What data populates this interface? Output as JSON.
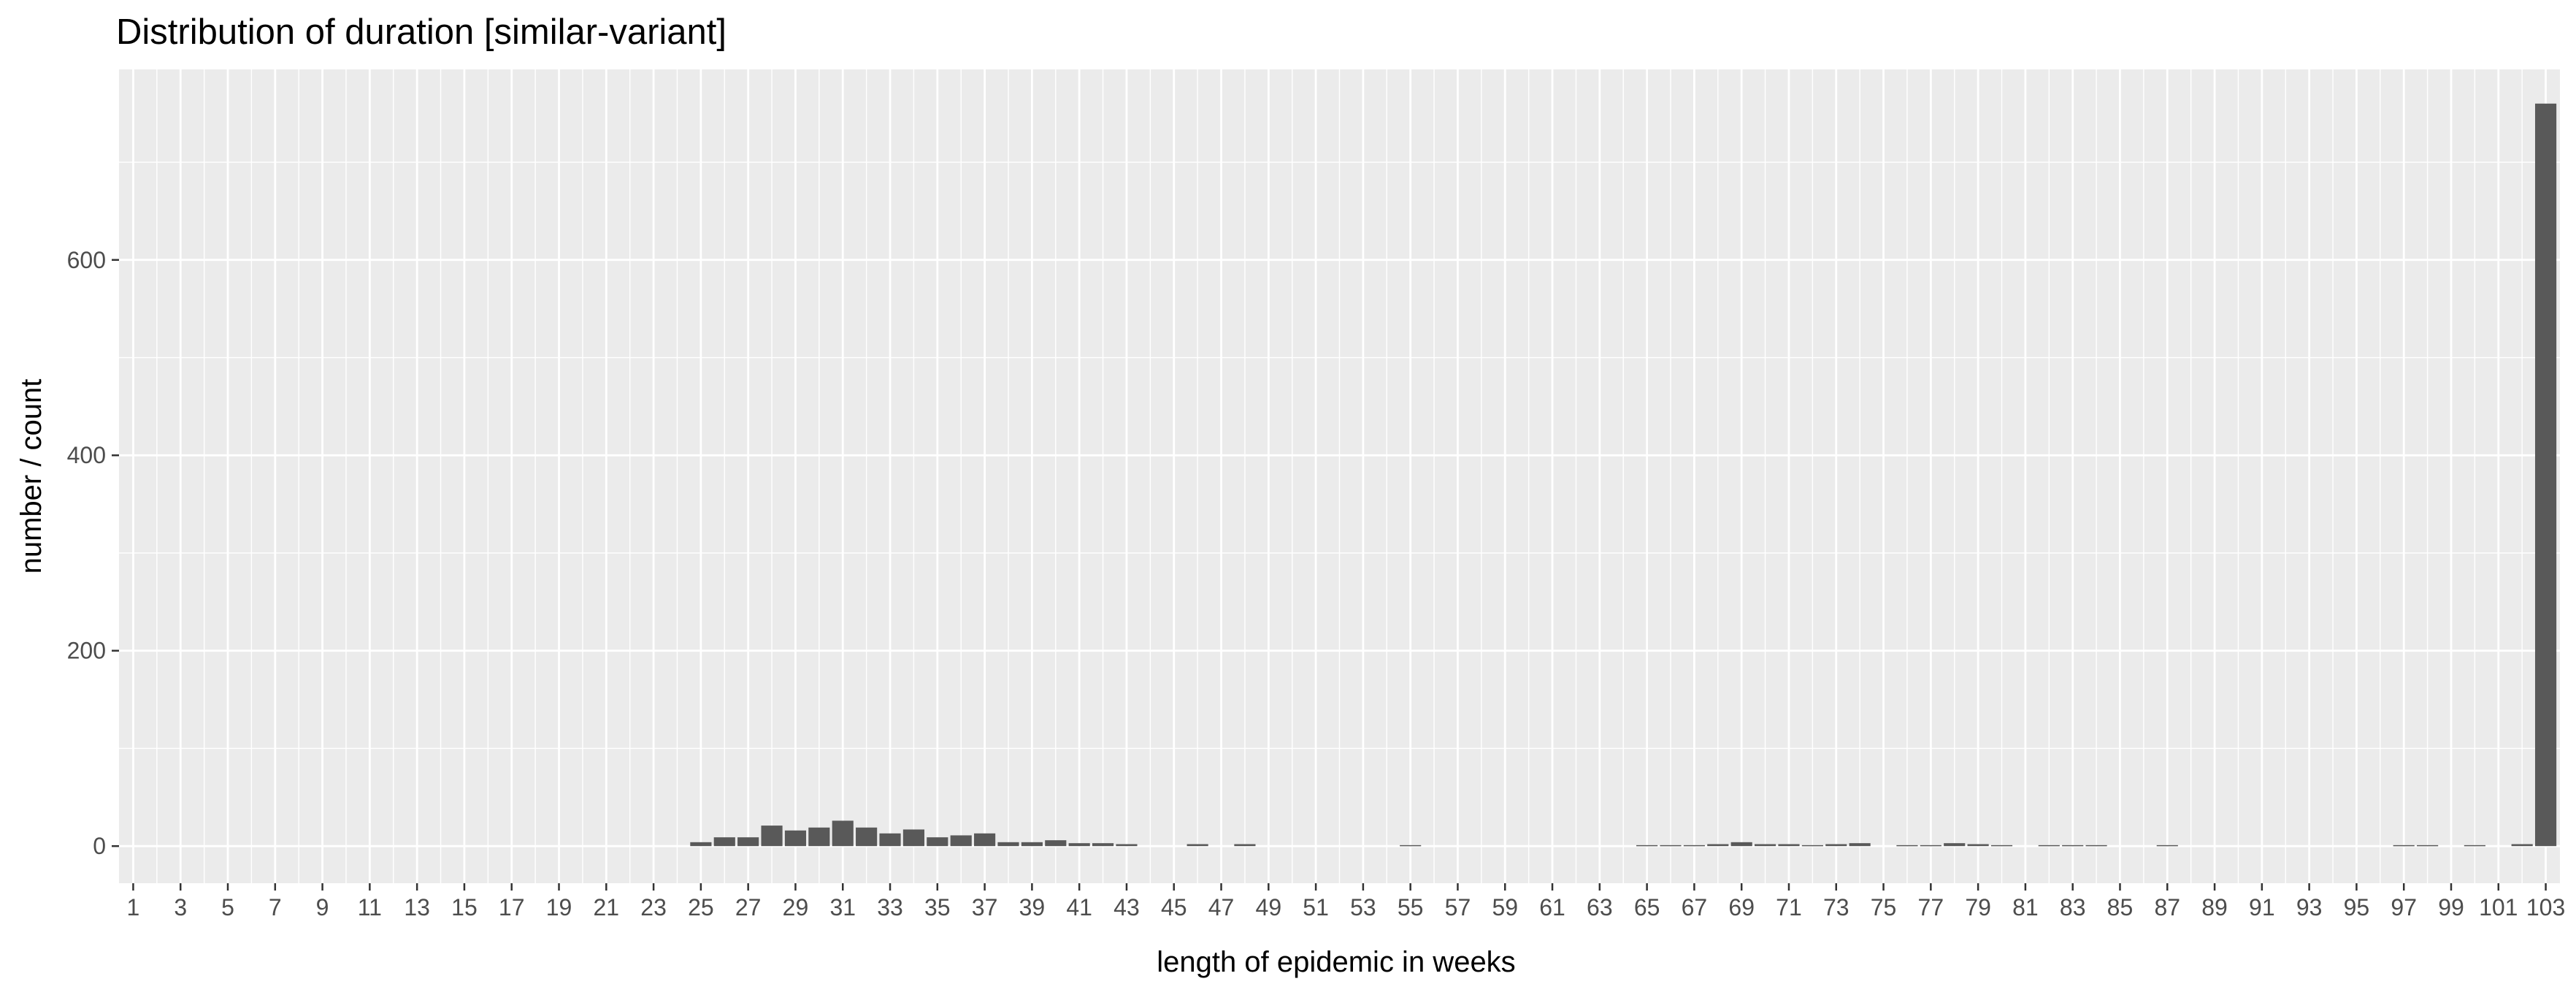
{
  "chart_data": {
    "type": "bar",
    "title": "Distribution of duration [similar-variant]",
    "xlabel": "length of epidemic in weeks",
    "ylabel": "number / count",
    "x_ticks": [
      "1",
      "3",
      "5",
      "7",
      "9",
      "11",
      "13",
      "15",
      "17",
      "19",
      "21",
      "23",
      "25",
      "27",
      "29",
      "31",
      "33",
      "35",
      "37",
      "39",
      "41",
      "43",
      "45",
      "47",
      "49",
      "51",
      "53",
      "55",
      "57",
      "59",
      "61",
      "63",
      "65",
      "67",
      "69",
      "71",
      "73",
      "75",
      "77",
      "79",
      "81",
      "83",
      "85",
      "87",
      "89",
      "91",
      "93",
      "95",
      "97",
      "99",
      "101",
      "103"
    ],
    "xlim": [
      0.4,
      103.6
    ],
    "y_ticks": [
      0,
      200,
      400,
      600
    ],
    "ylim": [
      -38,
      795
    ],
    "grid": true,
    "bar_color": "#595959",
    "panel_background": "#ebebeb",
    "grid_color": "#ffffff",
    "x": [
      25,
      26,
      27,
      28,
      29,
      30,
      31,
      32,
      33,
      34,
      35,
      36,
      37,
      38,
      39,
      40,
      41,
      42,
      43,
      46,
      48,
      55,
      65,
      66,
      67,
      68,
      69,
      70,
      71,
      72,
      73,
      74,
      76,
      77,
      78,
      79,
      80,
      82,
      83,
      84,
      87,
      97,
      98,
      100,
      102,
      103
    ],
    "values": [
      4,
      9,
      9,
      21,
      16,
      19,
      26,
      19,
      13,
      17,
      9,
      11,
      13,
      4,
      4,
      6,
      3,
      3,
      2,
      2,
      2,
      1,
      1,
      1,
      1,
      2,
      4,
      2,
      2,
      1,
      2,
      3,
      1,
      1,
      3,
      2,
      1,
      1,
      1,
      1,
      1,
      1,
      1,
      1,
      2,
      760
    ]
  }
}
